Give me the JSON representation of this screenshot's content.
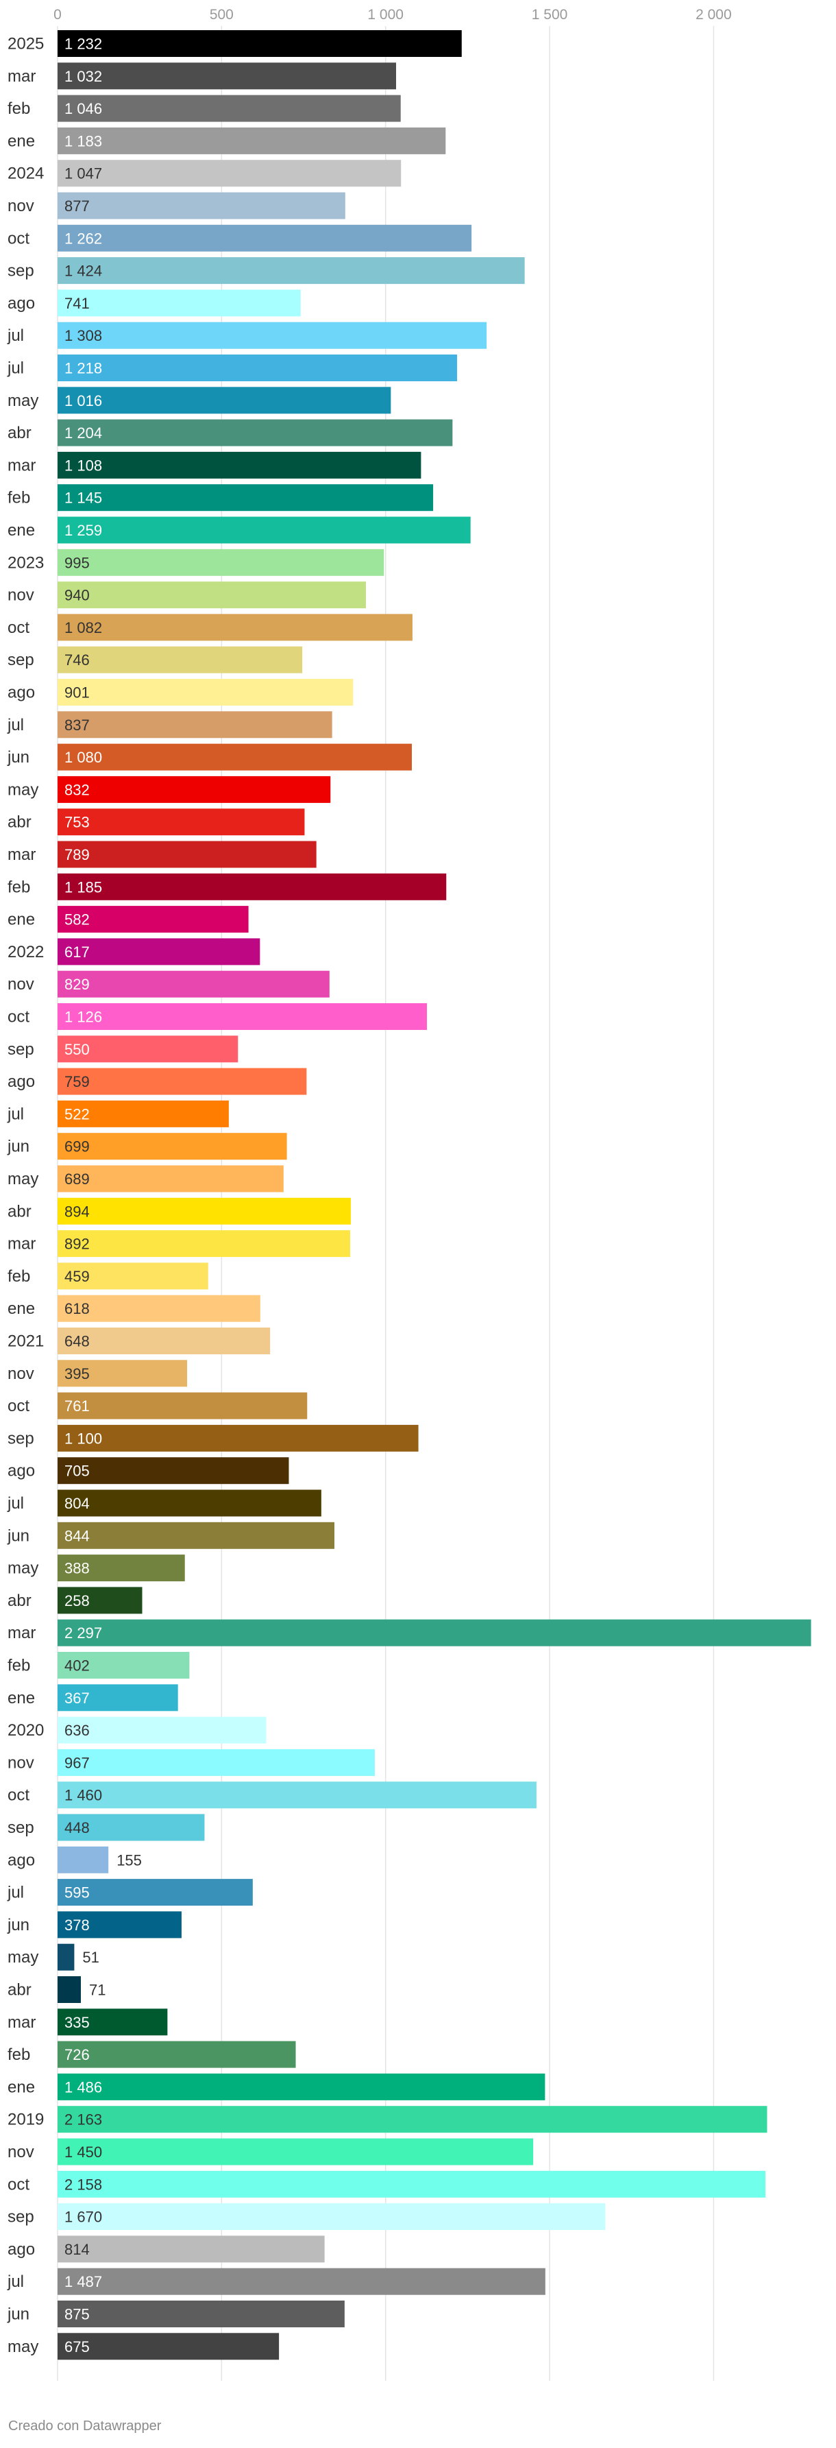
{
  "chart_data": {
    "type": "bar",
    "orientation": "horizontal",
    "title": "",
    "xlabel": "",
    "ylabel": "",
    "xlim": [
      0,
      2300
    ],
    "ticks": [
      0,
      500,
      1000,
      1500,
      2000
    ],
    "tick_labels": [
      "0",
      "500",
      "1 000",
      "1 500",
      "2 000"
    ],
    "grid": true,
    "legend": "none",
    "categories": [
      "2025",
      "mar",
      "feb",
      "ene",
      "2024",
      "nov",
      "oct",
      "sep",
      "ago",
      "jul",
      "jul",
      "may",
      "abr",
      "mar",
      "feb",
      "ene",
      "2023",
      "nov",
      "oct",
      "sep",
      "ago",
      "jul",
      "jun",
      "may",
      "abr",
      "mar",
      "feb",
      "ene",
      "2022",
      "nov",
      "oct",
      "sep",
      "ago",
      "jul",
      "jun",
      "may",
      "abr",
      "mar",
      "feb",
      "ene",
      "2021",
      "nov",
      "oct",
      "sep",
      "ago",
      "jul",
      "jun",
      "may",
      "abr",
      "mar",
      "feb",
      "ene",
      "2020",
      "nov",
      "oct",
      "sep",
      "ago",
      "jul",
      "jun",
      "may",
      "abr",
      "mar",
      "feb",
      "ene",
      "2019",
      "nov",
      "oct",
      "sep",
      "ago",
      "jul",
      "jun",
      "may"
    ],
    "values": [
      1232,
      1032,
      1046,
      1183,
      1047,
      877,
      1262,
      1424,
      741,
      1308,
      1218,
      1016,
      1204,
      1108,
      1145,
      1259,
      995,
      940,
      1082,
      746,
      901,
      837,
      1080,
      832,
      753,
      789,
      1185,
      582,
      617,
      829,
      1126,
      550,
      759,
      522,
      699,
      689,
      894,
      892,
      459,
      618,
      648,
      395,
      761,
      1100,
      705,
      804,
      844,
      388,
      258,
      2297,
      402,
      367,
      636,
      967,
      1460,
      448,
      155,
      595,
      378,
      51,
      71,
      335,
      726,
      1486,
      2163,
      1450,
      2158,
      1670,
      814,
      1487,
      875,
      675
    ],
    "value_labels": [
      "1 232",
      "1 032",
      "1 046",
      "1 183",
      "1 047",
      "877",
      "1 262",
      "1 424",
      "741",
      "1 308",
      "1 218",
      "1 016",
      "1 204",
      "1 108",
      "1 145",
      "1 259",
      "995",
      "940",
      "1 082",
      "746",
      "901",
      "837",
      "1 080",
      "832",
      "753",
      "789",
      "1 185",
      "582",
      "617",
      "829",
      "1 126",
      "550",
      "759",
      "522",
      "699",
      "689",
      "894",
      "892",
      "459",
      "618",
      "648",
      "395",
      "761",
      "1 100",
      "705",
      "804",
      "844",
      "388",
      "258",
      "2 297",
      "402",
      "367",
      "636",
      "967",
      "1 460",
      "448",
      "155",
      "595",
      "378",
      "51",
      "71",
      "335",
      "726",
      "1 486",
      "2 163",
      "1 450",
      "2 158",
      "1 670",
      "814",
      "1 487",
      "875",
      "675"
    ],
    "colors": [
      "#000000",
      "#4d4d4d",
      "#6f6f6f",
      "#9b9b9b",
      "#c4c4c4",
      "#a4bfd4",
      "#78a6c8",
      "#82c5d0",
      "#a8ffff",
      "#6ed6f8",
      "#42b3e0",
      "#1690b0",
      "#49917a",
      "#00533e",
      "#00917e",
      "#14bd9c",
      "#9de59a",
      "#c0e083",
      "#d9a355",
      "#e0d57b",
      "#fff193",
      "#d79d69",
      "#d45b25",
      "#ee0000",
      "#e6221a",
      "#cc2020",
      "#a50028",
      "#d60066",
      "#bd0783",
      "#e847b0",
      "#ff5ecb",
      "#ff5f6b",
      "#ff7345",
      "#ff7d00",
      "#ff9f27",
      "#ffb559",
      "#ffe200",
      "#fde543",
      "#fee361",
      "#ffc87b",
      "#f0c98c",
      "#e7b364",
      "#c28f41",
      "#956015",
      "#4c2f02",
      "#4d3e00",
      "#8a7e38",
      "#71833e",
      "#1f4d1c",
      "#33a386",
      "#87e0b5",
      "#32b6d0",
      "#c6ffff",
      "#8bfbff",
      "#7adfe8",
      "#5acadd",
      "#8cb7e0",
      "#3990b9",
      "#036389",
      "#0f4d6c",
      "#00394c",
      "#005a30",
      "#4a9562",
      "#00b07c",
      "#34d9a0",
      "#42f3b6",
      "#70ffea",
      "#c8fdff",
      "#bbbbbb",
      "#8a8a8a",
      "#5d5d5d",
      "#434343"
    ],
    "label_colors": [
      "#ffffff",
      "#ffffff",
      "#ffffff",
      "#ffffff",
      "#333333",
      "#333333",
      "#ffffff",
      "#333333",
      "#333333",
      "#333333",
      "#ffffff",
      "#ffffff",
      "#ffffff",
      "#ffffff",
      "#ffffff",
      "#ffffff",
      "#333333",
      "#333333",
      "#333333",
      "#333333",
      "#333333",
      "#333333",
      "#ffffff",
      "#ffffff",
      "#ffffff",
      "#ffffff",
      "#ffffff",
      "#ffffff",
      "#ffffff",
      "#ffffff",
      "#ffffff",
      "#ffffff",
      "#333333",
      "#ffffff",
      "#333333",
      "#333333",
      "#333333",
      "#333333",
      "#333333",
      "#333333",
      "#333333",
      "#333333",
      "#ffffff",
      "#ffffff",
      "#ffffff",
      "#ffffff",
      "#ffffff",
      "#ffffff",
      "#ffffff",
      "#ffffff",
      "#333333",
      "#ffffff",
      "#333333",
      "#333333",
      "#333333",
      "#333333",
      "#ffffff",
      "#ffffff",
      "#ffffff",
      "#333333",
      "#333333",
      "#ffffff",
      "#ffffff",
      "#ffffff",
      "#333333",
      "#333333",
      "#333333",
      "#333333",
      "#333333",
      "#ffffff",
      "#ffffff",
      "#ffffff"
    ]
  },
  "footer": {
    "credit": "Creado con Datawrapper"
  }
}
